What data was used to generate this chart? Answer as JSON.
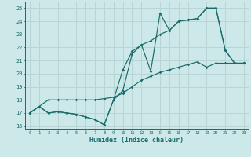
{
  "xlabel": "Humidex (Indice chaleur)",
  "bg_color": "#cde8e8",
  "grid_color": "#b8d4d4",
  "line_color": "#1a6b6b",
  "xlim": [
    -0.5,
    23.5
  ],
  "ylim": [
    15.8,
    25.5
  ],
  "xticks": [
    0,
    1,
    2,
    3,
    4,
    5,
    6,
    7,
    8,
    9,
    10,
    11,
    12,
    13,
    14,
    15,
    16,
    17,
    18,
    19,
    20,
    21,
    22,
    23
  ],
  "yticks": [
    16,
    17,
    18,
    19,
    20,
    21,
    22,
    23,
    24,
    25
  ],
  "line1_x": [
    0,
    1,
    2,
    3,
    4,
    5,
    6,
    7,
    8,
    9,
    10,
    11,
    12,
    13,
    14,
    15,
    16,
    17,
    18,
    19,
    20,
    21,
    22,
    23
  ],
  "line1_y": [
    17.0,
    17.5,
    17.0,
    17.1,
    17.0,
    16.9,
    16.7,
    16.5,
    16.1,
    18.0,
    18.7,
    21.5,
    22.2,
    20.2,
    24.6,
    23.3,
    24.0,
    24.1,
    24.2,
    25.0,
    25.0,
    21.8,
    20.8,
    20.8
  ],
  "line2_x": [
    0,
    1,
    2,
    3,
    4,
    5,
    6,
    7,
    8,
    9,
    10,
    11,
    12,
    13,
    14,
    15,
    16,
    17,
    18,
    19,
    20,
    21,
    22,
    23
  ],
  "line2_y": [
    17.0,
    17.5,
    17.0,
    17.1,
    17.0,
    16.9,
    16.7,
    16.5,
    16.1,
    18.0,
    20.3,
    21.7,
    22.2,
    22.5,
    23.0,
    23.3,
    24.0,
    24.1,
    24.2,
    25.0,
    25.0,
    21.8,
    20.8,
    20.8
  ],
  "line3_x": [
    0,
    1,
    2,
    3,
    4,
    5,
    6,
    7,
    8,
    9,
    10,
    11,
    12,
    13,
    14,
    15,
    16,
    17,
    18,
    19,
    20,
    21,
    22,
    23
  ],
  "line3_y": [
    17.0,
    17.5,
    18.0,
    18.0,
    18.0,
    18.0,
    18.0,
    18.0,
    18.1,
    18.2,
    18.5,
    19.0,
    19.5,
    19.8,
    20.1,
    20.3,
    20.5,
    20.7,
    20.9,
    20.5,
    20.8,
    20.8,
    20.8,
    20.8
  ]
}
